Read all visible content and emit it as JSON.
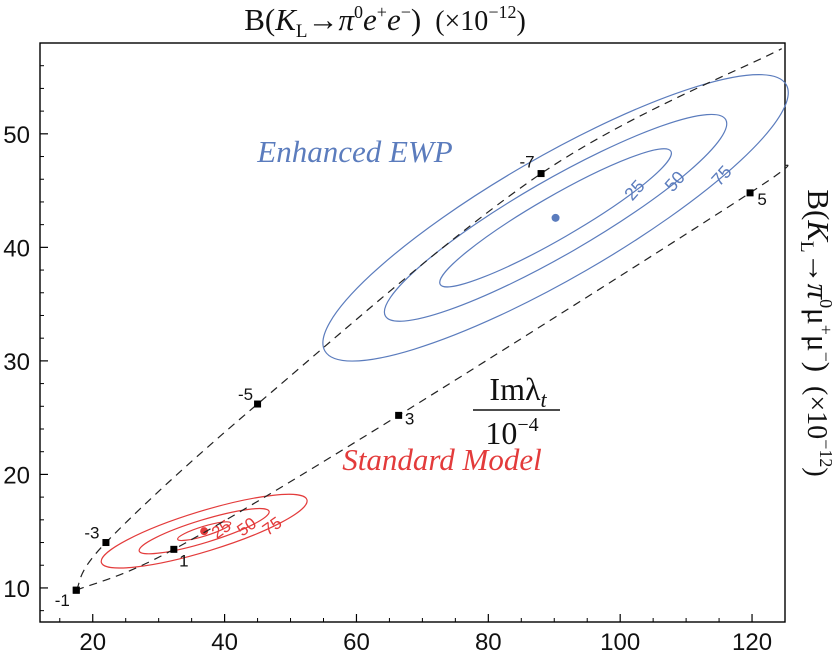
{
  "chart_data": {
    "type": "contour",
    "title": {
      "prefix": "B(",
      "K": "K",
      "K_sub": "L",
      "arrow": "→",
      "pi": "π",
      "pi_sup": "0",
      "e1": "e",
      "e1_sup": "+",
      "e2": "e",
      "e2_sup": "−",
      "close": ")",
      "factor": "(×10",
      "factor_sup": "−12",
      "factor_close": ")"
    },
    "right_label": {
      "prefix": "B(",
      "K": "K",
      "K_sub": "L",
      "arrow": "→",
      "pi": "π",
      "pi_sup": "0",
      "mu1": "μ",
      "mu1_sup": "+",
      "mu2": "μ",
      "mu2_sup": "−",
      "close": ")",
      "factor": "(×10",
      "factor_sup": "−12",
      "factor_close": ")"
    },
    "xlim": [
      12,
      125
    ],
    "ylim": [
      7,
      58
    ],
    "x_ticks": [
      20,
      40,
      60,
      80,
      100,
      120
    ],
    "y_ticks": [
      10,
      20,
      30,
      40,
      50
    ],
    "center_label": {
      "numerator": "Imλ",
      "numerator_sub": "t",
      "denominator": "10",
      "denominator_sup": "−4"
    },
    "colors": {
      "standard_model": "#e33b3b",
      "enhanced_ewp": "#5b7cbd",
      "curves": "#222222"
    },
    "series": [
      {
        "name": "Standard Model",
        "color": "#e33b3b",
        "center": [
          36.9,
          15.0
        ],
        "angle_deg": 17,
        "contours": [
          {
            "label": "25",
            "semi_axes": [
              4.2,
              0.73
            ]
          },
          {
            "label": "50",
            "semi_axes": [
              10.3,
              1.72
            ]
          },
          {
            "label": "75",
            "semi_axes": [
              16.3,
              3.05
            ]
          }
        ]
      },
      {
        "name": "Enhanced EWP",
        "color": "#5b7cbd",
        "center": [
          90.2,
          42.6
        ],
        "angle_deg": 30,
        "contours": [
          {
            "label": "25",
            "semi_axes": [
              20.2,
              3.2
            ]
          },
          {
            "label": "50",
            "semi_axes": [
              29.8,
              5.65
            ]
          },
          {
            "label": "75",
            "semi_axes": [
              40.4,
              9.23
            ]
          }
        ]
      }
    ],
    "curves": [
      {
        "name": "negative Imλt",
        "points": [
          {
            "x": 17.5,
            "y": 9.8,
            "label": "-1"
          },
          {
            "x": 22.0,
            "y": 14.0,
            "label": "-3"
          },
          {
            "x": 45.0,
            "y": 26.2,
            "label": "-5"
          },
          {
            "x": 88.0,
            "y": 46.5,
            "label": "-7"
          }
        ]
      },
      {
        "name": "positive Imλt",
        "points": [
          {
            "x": 17.5,
            "y": 9.8,
            "label": ""
          },
          {
            "x": 32.3,
            "y": 13.4,
            "label": "1"
          },
          {
            "x": 66.4,
            "y": 25.2,
            "label": "3"
          },
          {
            "x": 119.7,
            "y": 44.8,
            "label": "5"
          }
        ]
      }
    ]
  }
}
